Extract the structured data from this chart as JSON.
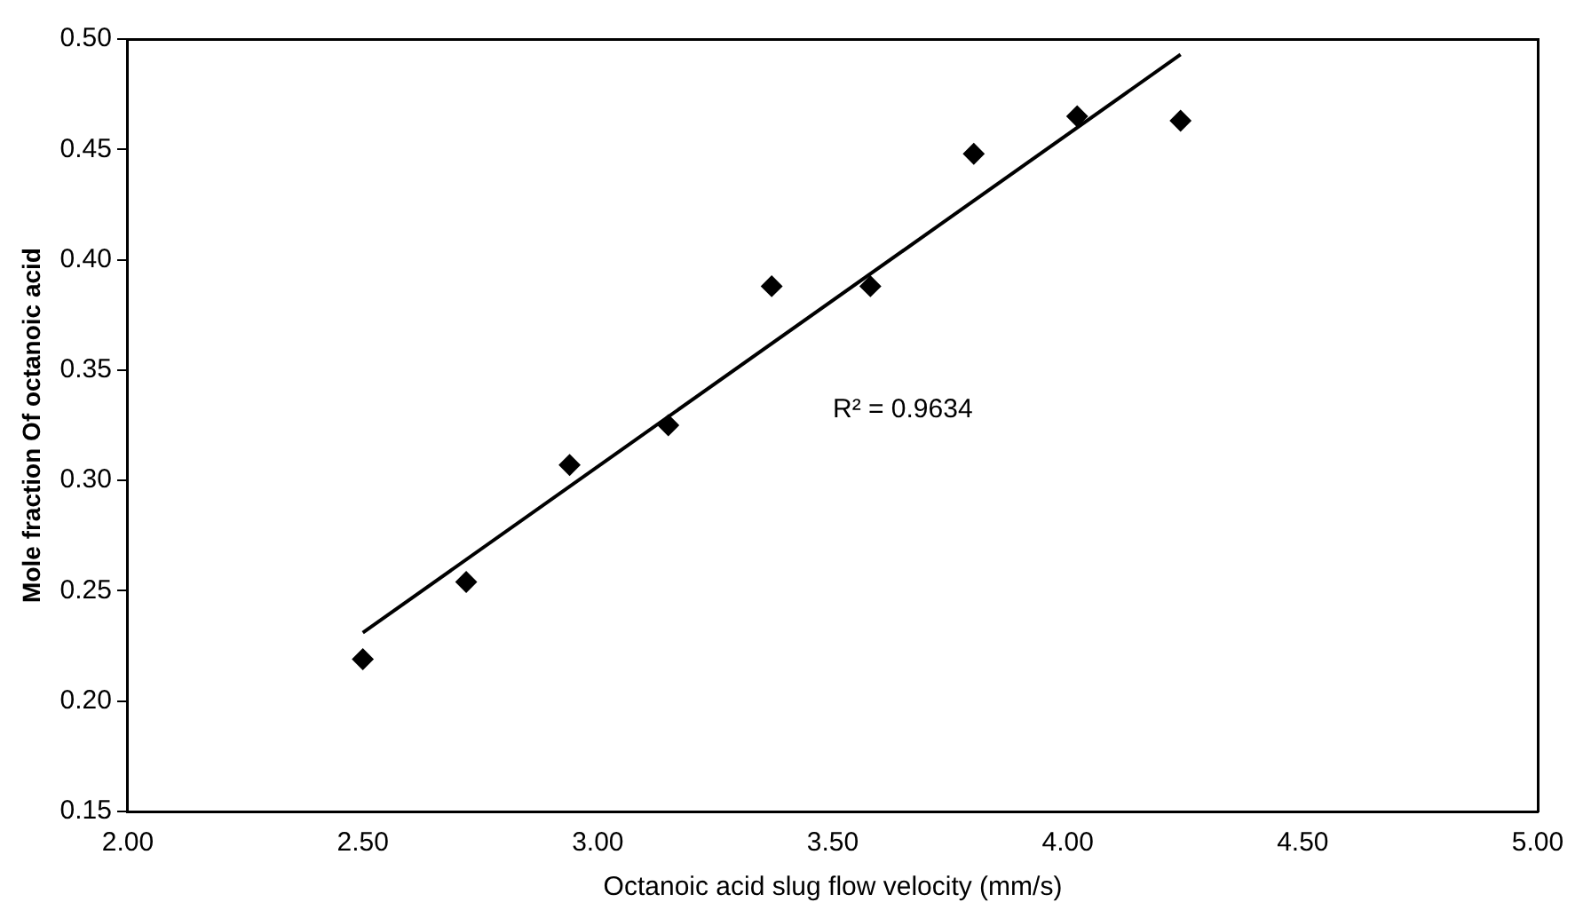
{
  "chart_data": {
    "type": "scatter",
    "xlabel": "Octanoic acid slug flow velocity (mm/s)",
    "ylabel": "Mole fraction Of octanoic acid",
    "xlim": [
      2.0,
      5.0
    ],
    "xticks": [
      {
        "value": 2,
        "label": "2.00"
      },
      {
        "value": 2.5,
        "label": "2.50"
      },
      {
        "value": 3,
        "label": "3.00"
      },
      {
        "value": 3.5,
        "label": "3.50"
      },
      {
        "value": 4,
        "label": "4.00"
      },
      {
        "value": 4.5,
        "label": "4.50"
      },
      {
        "value": 5,
        "label": "5.00"
      }
    ],
    "ylim": [
      0.15,
      0.5
    ],
    "yticks": [
      {
        "value": 0.15,
        "label": "0.15"
      },
      {
        "value": 0.2,
        "label": "0.20"
      },
      {
        "value": 0.25,
        "label": "0.25"
      },
      {
        "value": 0.3,
        "label": "0.30"
      },
      {
        "value": 0.35,
        "label": "0.35"
      },
      {
        "value": 0.4,
        "label": "0.40"
      },
      {
        "value": 0.45,
        "label": "0.45"
      },
      {
        "value": 0.5,
        "label": "0.50"
      }
    ],
    "grid": false,
    "legend": false,
    "marker": "diamond",
    "series": [
      {
        "type": "scatter",
        "color": "#000000",
        "x": [
          2.5,
          2.72,
          2.94,
          3.15,
          3.37,
          3.58,
          3.8,
          4.02,
          4.24
        ],
        "values": [
          0.219,
          0.254,
          0.307,
          0.325,
          0.388,
          0.388,
          0.448,
          0.465,
          0.463
        ]
      },
      {
        "type": "line",
        "color": "#000000",
        "x": [
          2.5,
          4.24
        ],
        "values": [
          0.231,
          0.493
        ],
        "line_style": "solid",
        "marker": "none"
      }
    ],
    "annotations": [
      "R² = 0.9634"
    ]
  }
}
